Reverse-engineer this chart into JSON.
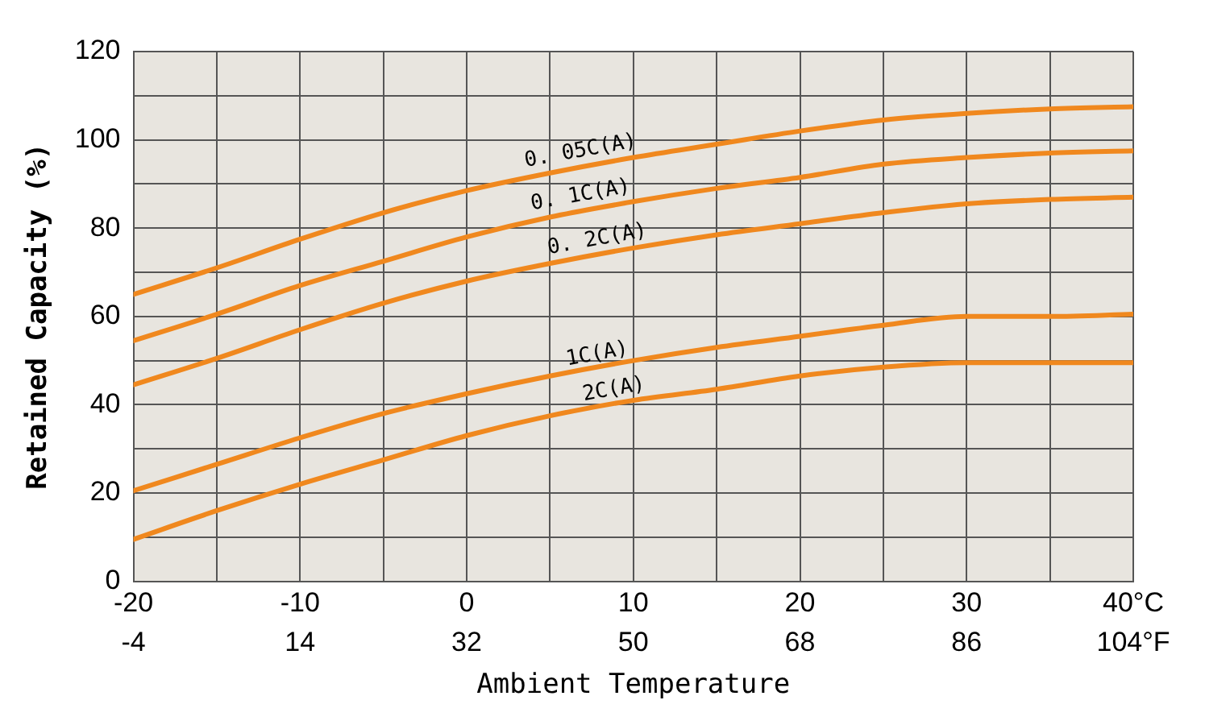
{
  "chart_data": {
    "type": "line",
    "xlabel": "Ambient Temperature",
    "ylabel": "Retained Capacity (%)",
    "x": [
      -20,
      -15,
      -10,
      -5,
      0,
      5,
      10,
      15,
      20,
      25,
      30,
      35,
      40
    ],
    "series": [
      {
        "color": "#f0881e",
        "values": [
          65,
          71,
          77.5,
          83.5,
          88.5,
          92.5,
          96,
          99,
          102,
          104.5,
          106,
          107,
          107.5
        ]
      },
      {
        "color": "#f0881e",
        "values": [
          54.5,
          60.5,
          67,
          72.5,
          78,
          82.5,
          86,
          89,
          91.5,
          94.5,
          96,
          97,
          97.5
        ]
      },
      {
        "color": "#f0881e",
        "values": [
          44.5,
          50.5,
          57,
          63,
          68,
          72,
          75.5,
          78.5,
          81,
          83.5,
          85.5,
          86.5,
          87
        ]
      },
      {
        "color": "#f0881e",
        "values": [
          20.5,
          26.5,
          32.5,
          38,
          42.5,
          46.5,
          50,
          53,
          55.5,
          58,
          60,
          60,
          60.5
        ]
      },
      {
        "color": "#f0881e",
        "values": [
          9.5,
          16,
          22,
          27.5,
          33,
          37.5,
          41,
          43.5,
          46.5,
          48.5,
          49.5,
          49.5,
          49.5
        ]
      }
    ],
    "annotations": [
      {
        "text": "0. 05C(A)",
        "x": 7,
        "y": 94
      },
      {
        "text": "0. 1C(A)",
        "x": 7,
        "y": 84
      },
      {
        "text": "0. 2C(A)",
        "x": 8,
        "y": 74
      },
      {
        "text": "1C(A)",
        "x": 8,
        "y": 48
      },
      {
        "text": "2C(A)",
        "x": 9,
        "y": 40
      }
    ],
    "xlim": [
      -20,
      40
    ],
    "xticks": [
      -20,
      {
        "value": -15,
        "label": null
      },
      -10,
      {
        "value": -5,
        "label": null
      },
      0,
      {
        "value": 5,
        "label": null
      },
      10,
      {
        "value": 15,
        "label": null
      },
      20,
      {
        "value": 25,
        "label": null
      },
      30,
      {
        "value": 35,
        "label": null
      },
      {
        "value": 40,
        "label": "40°C"
      }
    ],
    "x2lim": [
      -4,
      104
    ],
    "x2ticks": [
      -4,
      14,
      32,
      50,
      68,
      86,
      {
        "value": 104,
        "label": "104°F"
      }
    ],
    "ylim": [
      0,
      120
    ],
    "yticks": [
      0,
      {
        "value": 10,
        "label": null
      },
      20,
      {
        "value": 30,
        "label": null
      },
      40,
      {
        "value": 50,
        "label": null
      },
      60,
      {
        "value": 70,
        "label": null
      },
      80,
      {
        "value": 90,
        "label": null
      },
      100,
      {
        "value": 110,
        "label": null
      },
      120
    ],
    "grid": true,
    "legend": false,
    "marker": "none",
    "line_style": "solid"
  }
}
